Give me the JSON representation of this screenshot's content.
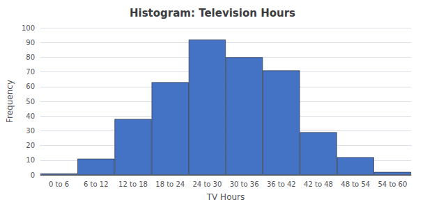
{
  "chart_data": {
    "type": "bar",
    "title": "Histogram: Television Hours",
    "xlabel": "TV Hours",
    "ylabel": "Frequency",
    "categories": [
      "0 to 6",
      "6 to 12",
      "12 to 18",
      "18 to 24",
      "24 to 30",
      "30 to 36",
      "36 to 42",
      "42 to 48",
      "48 to 54",
      "54 to 60"
    ],
    "values": [
      1,
      11,
      38,
      63,
      92,
      80,
      71,
      29,
      12,
      2
    ],
    "color": "#4472C4",
    "ylim": [
      0,
      100
    ],
    "yticks": [
      0,
      10,
      20,
      30,
      40,
      50,
      60,
      70,
      80,
      90,
      100
    ],
    "grid": true
  }
}
